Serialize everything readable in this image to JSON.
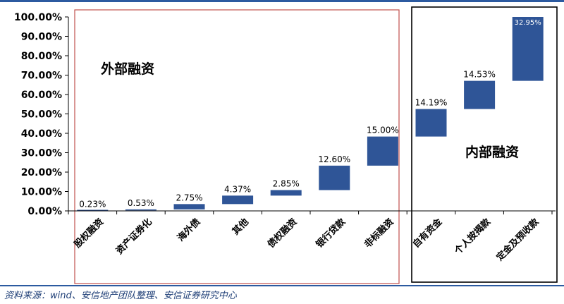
{
  "chart_data": {
    "type": "bar",
    "subtype": "waterfall",
    "categories": [
      "股权融资",
      "资产证券化",
      "海外债",
      "其他",
      "债权融资",
      "银行贷款",
      "非标融资",
      "自有资金",
      "个人按揭款",
      "定金及预收款"
    ],
    "values": [
      0.23,
      0.53,
      2.75,
      4.37,
      2.85,
      12.6,
      15.0,
      14.19,
      14.53,
      32.95
    ],
    "data_labels": [
      "0.23%",
      "0.53%",
      "2.75%",
      "4.37%",
      "2.85%",
      "12.60%",
      "15.00%",
      "14.19%",
      "14.53%",
      "32.95%"
    ],
    "ylim": [
      0,
      100
    ],
    "yticks": [
      "0.00%",
      "10.00%",
      "20.00%",
      "30.00%",
      "40.00%",
      "50.00%",
      "60.00%",
      "70.00%",
      "80.00%",
      "90.00%",
      "100.00%"
    ],
    "groups": [
      {
        "label": "外部融资",
        "start": 0,
        "end": 6,
        "border_color": "#c0504d"
      },
      {
        "label": "内部融资",
        "start": 7,
        "end": 9,
        "border_color": "#000000"
      }
    ],
    "bar_color": "#2f5597",
    "grid": false
  },
  "source_note": "资料来源：wind、安信地产团队整理、安信证券研究中心"
}
